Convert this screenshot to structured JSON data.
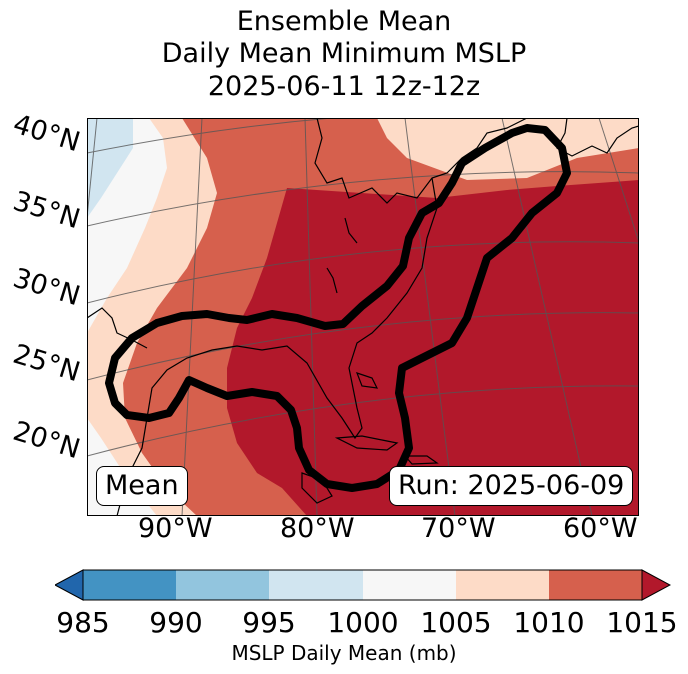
{
  "title": {
    "line1": "Ensemble Mean",
    "line2": "Daily Mean Minimum MSLP",
    "line3": "2025-06-11 12z-12z"
  },
  "map": {
    "lat_labels": [
      "40°N",
      "35°N",
      "30°N",
      "25°N",
      "20°N"
    ],
    "lon_labels": [
      "90°W",
      "80°W",
      "70°W",
      "60°W"
    ],
    "badge_left": "Mean",
    "badge_right": "Run: 2025-06-09"
  },
  "colorbar": {
    "ticks": [
      "985",
      "990",
      "995",
      "1000",
      "1005",
      "1010",
      "1015"
    ],
    "label": "MSLP Daily Mean (mb)",
    "colors": [
      "#2166ac",
      "#4393c3",
      "#92c5de",
      "#d1e5f0",
      "#f7f7f7",
      "#fddbc7",
      "#d6604d",
      "#b2182b"
    ]
  },
  "colors": {
    "bin_995_1000": "#d1e5f0",
    "bin_1000_1005": "#f7f7f7",
    "bin_1005_1010": "#fddbc7",
    "bin_1010_1015": "#d6604d",
    "bin_above_1015": "#b2182b",
    "contour": "#000000",
    "coast": "#000000",
    "grid": "#555555"
  }
}
